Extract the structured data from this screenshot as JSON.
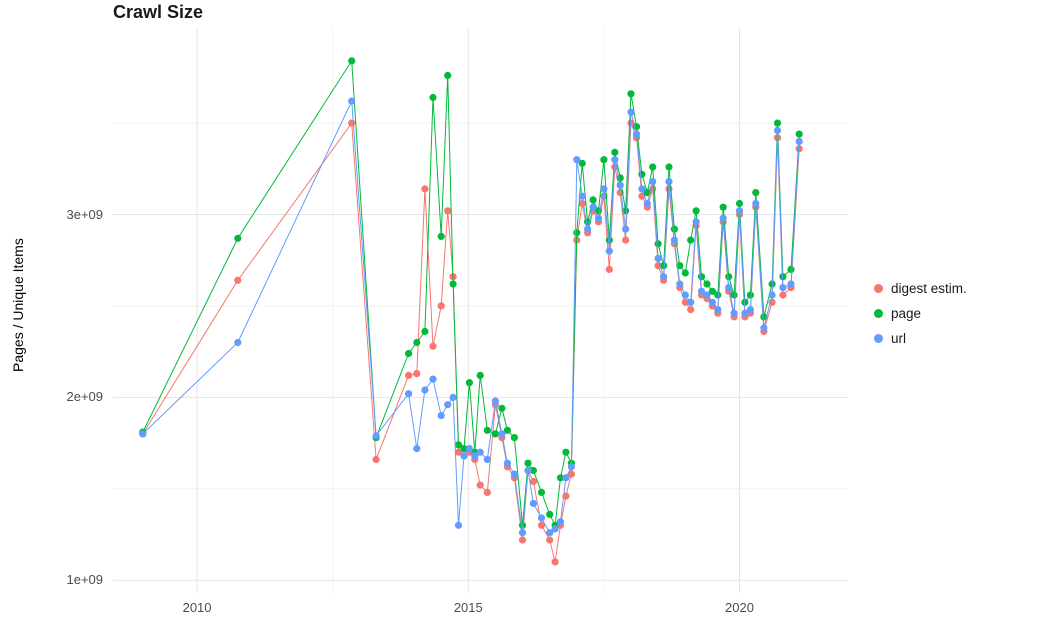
{
  "chart_data": {
    "type": "line",
    "title": "Crawl Size",
    "xlabel": "",
    "ylabel": "Pages / Unique Items",
    "legend_position": "right",
    "grid": true,
    "xlim": [
      2008.45,
      2022.0
    ],
    "ylim": [
      930000000.0,
      4020000000.0
    ],
    "x_ticks": [
      {
        "value": 2010,
        "label": "2010"
      },
      {
        "value": 2015,
        "label": "2015"
      },
      {
        "value": 2020,
        "label": "2020"
      }
    ],
    "y_ticks": [
      {
        "value": 1000000000.0,
        "label": "1e+09"
      },
      {
        "value": 2000000000.0,
        "label": "2e+09"
      },
      {
        "value": 3000000000.0,
        "label": "3e+09"
      }
    ],
    "x_minor_gridlines": [
      2012.5,
      2017.5
    ],
    "y_minor_gridlines": [
      1500000000.0,
      2500000000.0,
      3500000000.0
    ],
    "x": [
      2009.0,
      2010.75,
      2012.85,
      2013.3,
      2013.9,
      2014.05,
      2014.2,
      2014.35,
      2014.5,
      2014.62,
      2014.72,
      2014.82,
      2014.92,
      2015.02,
      2015.12,
      2015.22,
      2015.35,
      2015.5,
      2015.62,
      2015.72,
      2015.85,
      2016.0,
      2016.1,
      2016.2,
      2016.35,
      2016.5,
      2016.6,
      2016.7,
      2016.8,
      2016.9,
      2017.0,
      2017.1,
      2017.2,
      2017.3,
      2017.4,
      2017.5,
      2017.6,
      2017.7,
      2017.8,
      2017.9,
      2018.0,
      2018.1,
      2018.2,
      2018.3,
      2018.4,
      2018.5,
      2018.6,
      2018.7,
      2018.8,
      2018.9,
      2019.0,
      2019.1,
      2019.2,
      2019.3,
      2019.4,
      2019.5,
      2019.6,
      2019.7,
      2019.8,
      2019.9,
      2020.0,
      2020.1,
      2020.2,
      2020.3,
      2020.45,
      2020.6,
      2020.7,
      2020.8,
      2020.95,
      2021.1
    ],
    "series": [
      {
        "name": "digest estim.",
        "color": "#F8766D",
        "values": [
          1800000000.0,
          2640000000.0,
          3500000000.0,
          1660000000.0,
          2120000000.0,
          2130000000.0,
          3140000000.0,
          2280000000.0,
          2500000000.0,
          3020000000.0,
          2660000000.0,
          1700000000.0,
          1680000000.0,
          1700000000.0,
          1660000000.0,
          1520000000.0,
          1480000000.0,
          1960000000.0,
          1780000000.0,
          1620000000.0,
          1560000000.0,
          1220000000.0,
          1600000000.0,
          1540000000.0,
          1300000000.0,
          1220000000.0,
          1100000000.0,
          1300000000.0,
          1460000000.0,
          1580000000.0,
          2860000000.0,
          3060000000.0,
          2900000000.0,
          3020000000.0,
          2960000000.0,
          3100000000.0,
          2700000000.0,
          3260000000.0,
          3120000000.0,
          2860000000.0,
          3500000000.0,
          3420000000.0,
          3100000000.0,
          3040000000.0,
          3140000000.0,
          2720000000.0,
          2640000000.0,
          3140000000.0,
          2840000000.0,
          2600000000.0,
          2520000000.0,
          2480000000.0,
          2940000000.0,
          2560000000.0,
          2540000000.0,
          2500000000.0,
          2460000000.0,
          2960000000.0,
          2580000000.0,
          2440000000.0,
          3000000000.0,
          2440000000.0,
          2460000000.0,
          3040000000.0,
          2360000000.0,
          2520000000.0,
          3420000000.0,
          2560000000.0,
          2600000000.0,
          3360000000.0
        ]
      },
      {
        "name": "page",
        "color": "#00BA38",
        "values": [
          1810000000.0,
          2870000000.0,
          3840000000.0,
          1780000000.0,
          2240000000.0,
          2300000000.0,
          2360000000.0,
          3640000000.0,
          2880000000.0,
          3760000000.0,
          2620000000.0,
          1740000000.0,
          1720000000.0,
          2080000000.0,
          1700000000.0,
          2120000000.0,
          1820000000.0,
          1800000000.0,
          1940000000.0,
          1820000000.0,
          1780000000.0,
          1300000000.0,
          1640000000.0,
          1600000000.0,
          1480000000.0,
          1360000000.0,
          1300000000.0,
          1560000000.0,
          1700000000.0,
          1640000000.0,
          2900000000.0,
          3280000000.0,
          2960000000.0,
          3080000000.0,
          3020000000.0,
          3300000000.0,
          2860000000.0,
          3340000000.0,
          3200000000.0,
          3020000000.0,
          3660000000.0,
          3480000000.0,
          3220000000.0,
          3120000000.0,
          3260000000.0,
          2840000000.0,
          2720000000.0,
          3260000000.0,
          2920000000.0,
          2720000000.0,
          2680000000.0,
          2860000000.0,
          3020000000.0,
          2660000000.0,
          2620000000.0,
          2580000000.0,
          2560000000.0,
          3040000000.0,
          2660000000.0,
          2560000000.0,
          3060000000.0,
          2520000000.0,
          2560000000.0,
          3120000000.0,
          2440000000.0,
          2620000000.0,
          3500000000.0,
          2660000000.0,
          2700000000.0,
          3440000000.0
        ]
      },
      {
        "name": "url",
        "color": "#619CFF",
        "values": [
          1800000000.0,
          2300000000.0,
          3620000000.0,
          1790000000.0,
          2020000000.0,
          1720000000.0,
          2040000000.0,
          2100000000.0,
          1900000000.0,
          1960000000.0,
          2000000000.0,
          1300000000.0,
          1680000000.0,
          1720000000.0,
          1680000000.0,
          1700000000.0,
          1660000000.0,
          1980000000.0,
          1800000000.0,
          1640000000.0,
          1580000000.0,
          1260000000.0,
          1600000000.0,
          1420000000.0,
          1340000000.0,
          1260000000.0,
          1280000000.0,
          1320000000.0,
          1560000000.0,
          1620000000.0,
          3300000000.0,
          3100000000.0,
          2920000000.0,
          3040000000.0,
          2980000000.0,
          3140000000.0,
          2800000000.0,
          3300000000.0,
          3160000000.0,
          2920000000.0,
          3560000000.0,
          3440000000.0,
          3140000000.0,
          3060000000.0,
          3180000000.0,
          2760000000.0,
          2660000000.0,
          3180000000.0,
          2860000000.0,
          2620000000.0,
          2560000000.0,
          2520000000.0,
          2960000000.0,
          2580000000.0,
          2560000000.0,
          2520000000.0,
          2480000000.0,
          2980000000.0,
          2600000000.0,
          2460000000.0,
          3020000000.0,
          2460000000.0,
          2480000000.0,
          3060000000.0,
          2380000000.0,
          2560000000.0,
          3460000000.0,
          2600000000.0,
          2620000000.0,
          3400000000.0
        ]
      }
    ],
    "style": {
      "major_grid_color": "#e5e5e5",
      "minor_grid_color": "#f2f2f2",
      "point_radius": 3.6,
      "line_width": 1
    }
  }
}
